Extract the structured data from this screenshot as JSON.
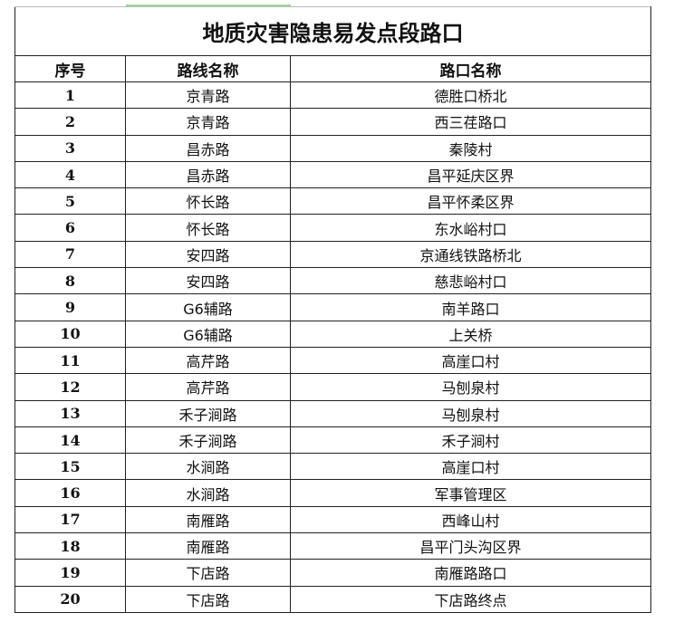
{
  "title": "地质灾害隐患易发点段路口",
  "headers": [
    "序号",
    "路线名称",
    "路口名称"
  ],
  "rows": [
    [
      "1",
      "京青路",
      "德胜口桥北"
    ],
    [
      "2",
      "京青路",
      "西三荏路口"
    ],
    [
      "3",
      "昌赤路",
      "秦陵村"
    ],
    [
      "4",
      "昌赤路",
      "昌平延庆区界"
    ],
    [
      "5",
      "怀长路",
      "昌平怀柔区界"
    ],
    [
      "6",
      "怀长路",
      "东水峪村口"
    ],
    [
      "7",
      "安四路",
      "京通线铁路桥北"
    ],
    [
      "8",
      "安四路",
      "慈悲峪村口"
    ],
    [
      "9",
      "G6辅路",
      "南羊路口"
    ],
    [
      "10",
      "G6辅路",
      "上关桥"
    ],
    [
      "11",
      "高芹路",
      "高崖口村"
    ],
    [
      "12",
      "高芹路",
      "马刨泉村"
    ],
    [
      "13",
      "禾子涧路",
      "马刨泉村"
    ],
    [
      "14",
      "禾子涧路",
      "禾子涧村"
    ],
    [
      "15",
      "水涧路",
      "高崖口村"
    ],
    [
      "16",
      "水涧路",
      "军事管理区"
    ],
    [
      "17",
      "南雁路",
      "西峰山村"
    ],
    [
      "18",
      "南雁路",
      "昌平门头沟区界"
    ],
    [
      "19",
      "下店路",
      "南雁路路口"
    ],
    [
      "20",
      "下店路",
      "下店路终点"
    ]
  ]
}
